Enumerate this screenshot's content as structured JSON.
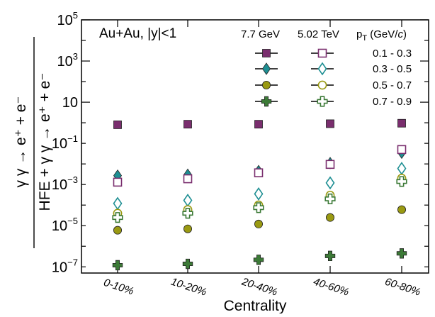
{
  "chart_data": {
    "type": "scatter",
    "annotation": "Au+Au, |y|<1",
    "xlabel": "Centrality",
    "ylabel": {
      "top": "γ γ → e⁺ + e⁻",
      "bottom": "HFE + γ γ → e⁺ + e⁻"
    },
    "y_scale": "log",
    "ylim": [
      5e-08,
      100000
    ],
    "y_ticks": [
      {
        "value": 100000,
        "base": "10",
        "exp": "5"
      },
      {
        "value": 1000,
        "base": "10",
        "exp": "3"
      },
      {
        "value": 10,
        "base": "10",
        "exp": ""
      },
      {
        "value": 0.1,
        "base": "10",
        "exp": "−1"
      },
      {
        "value": 0.001,
        "base": "10",
        "exp": "−3"
      },
      {
        "value": 1e-05,
        "base": "10",
        "exp": "−5"
      },
      {
        "value": 1e-07,
        "base": "10",
        "exp": "−7"
      }
    ],
    "categories": [
      "0-10%",
      "10-20%",
      "20-40%",
      "40-60%",
      "60-80%"
    ],
    "legend": {
      "headers": [
        "7.7 GeV",
        "5.02 TeV",
        "p_T (GeV/c)"
      ],
      "pt_label_main": "p",
      "pt_label_sub": "T",
      "pt_label_unit_open": " (GeV/",
      "pt_label_unit_c": "c",
      "pt_label_unit_close": ")",
      "rows": [
        "0.1 - 0.3",
        "0.3 - 0.5",
        "0.5 - 0.7",
        "0.7 - 0.9"
      ]
    },
    "colors": {
      "0.1 - 0.3": "#7a2e6e",
      "0.3 - 0.5": "#1e8f93",
      "0.5 - 0.7": "#9a9a12",
      "0.7 - 0.9": "#3c7a37"
    },
    "series": [
      {
        "energy": "7.7 GeV",
        "pt": "0.1 - 0.3",
        "marker": "square-filled",
        "values": [
          0.8,
          0.85,
          0.85,
          0.9,
          0.95
        ]
      },
      {
        "energy": "7.7 GeV",
        "pt": "0.3 - 0.5",
        "marker": "diamond-filled",
        "values": [
          0.0027,
          0.003,
          0.0045,
          0.011,
          0.035
        ]
      },
      {
        "energy": "7.7 GeV",
        "pt": "0.5 - 0.7",
        "marker": "circle-filled",
        "values": [
          6e-06,
          7e-06,
          1.2e-05,
          2.5e-05,
          6e-05
        ]
      },
      {
        "energy": "7.7 GeV",
        "pt": "0.7 - 0.9",
        "marker": "cross-filled",
        "values": [
          1.2e-07,
          1.4e-07,
          2.2e-07,
          3.4e-07,
          4.5e-07
        ]
      },
      {
        "energy": "5.02 TeV",
        "pt": "0.1 - 0.3",
        "marker": "square-open",
        "values": [
          0.0013,
          0.0019,
          0.0037,
          0.0095,
          0.05
        ]
      },
      {
        "energy": "5.02 TeV",
        "pt": "0.3 - 0.5",
        "marker": "diamond-open",
        "values": [
          0.00012,
          0.00017,
          0.00035,
          0.0012,
          0.006
        ]
      },
      {
        "energy": "5.02 TeV",
        "pt": "0.5 - 0.7",
        "marker": "circle-open",
        "values": [
          4e-05,
          6e-05,
          0.0001,
          0.0003,
          0.002
        ]
      },
      {
        "energy": "5.02 TeV",
        "pt": "0.7 - 0.9",
        "marker": "cross-open",
        "values": [
          2.5e-05,
          4e-05,
          7.5e-05,
          0.0002,
          0.0014
        ]
      }
    ]
  }
}
